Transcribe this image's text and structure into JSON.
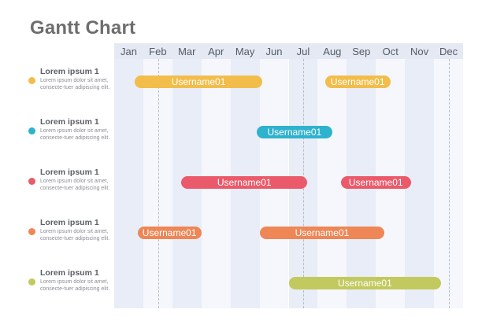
{
  "title": "Gantt Chart",
  "colors": {
    "band_dark": "#e8edf7",
    "band_light": "#f5f7fc",
    "header_bg": "#e4e9f3",
    "yellow": "#f2bd4b",
    "blue": "#2fb2cd",
    "red": "#eb5a6a",
    "orange": "#ee8656",
    "green": "#c2c95e"
  },
  "chart_data": {
    "type": "gantt",
    "title": "Gantt Chart",
    "x_axis": {
      "categories": [
        "Jan",
        "Feb",
        "Mar",
        "Apr",
        "May",
        "Jun",
        "Jul",
        "Aug",
        "Sep",
        "Oct",
        "Nov",
        "Dec"
      ],
      "dashed_markers": [
        2,
        7,
        12
      ]
    },
    "rows": [
      {
        "heading": "Lorem ipsum 1",
        "description": "Lorem ipsum dolor sit amet, consecte-tuer adipiscing elit.",
        "color": "#f2bd4b",
        "tasks": [
          {
            "label": "Username01",
            "start": 1.7,
            "end": 6.1
          },
          {
            "label": "Username01",
            "start": 8.25,
            "end": 10.5
          }
        ]
      },
      {
        "heading": "Lorem ipsum 1",
        "description": "Lorem ipsum dolor sit amet, consecte-tuer adipiscing elit.",
        "color": "#2fb2cd",
        "tasks": [
          {
            "label": "Username01",
            "start": 5.9,
            "end": 8.5
          }
        ]
      },
      {
        "heading": "Lorem ipsum 1",
        "description": "Lorem ipsum dolor sit amet, consecte-tuer adipiscing elit.",
        "color": "#eb5a6a",
        "tasks": [
          {
            "label": "Username01",
            "start": 3.3,
            "end": 7.65
          },
          {
            "label": "Username01",
            "start": 8.8,
            "end": 11.2
          }
        ]
      },
      {
        "heading": "Lorem ipsum 1",
        "description": "Lorem ipsum dolor sit amet, consecte-tuer adipiscing elit.",
        "color": "#ee8656",
        "tasks": [
          {
            "label": "Username01",
            "start": 1.8,
            "end": 4.0
          },
          {
            "label": "Username01",
            "start": 6.0,
            "end": 10.3
          }
        ]
      },
      {
        "heading": "Lorem ipsum 1",
        "description": "Lorem ipsum dolor sit amet, consecte-tuer adipiscing elit.",
        "color": "#c2c95e",
        "tasks": [
          {
            "label": "Username01",
            "start": 7.0,
            "end": 12.25
          }
        ]
      }
    ]
  }
}
